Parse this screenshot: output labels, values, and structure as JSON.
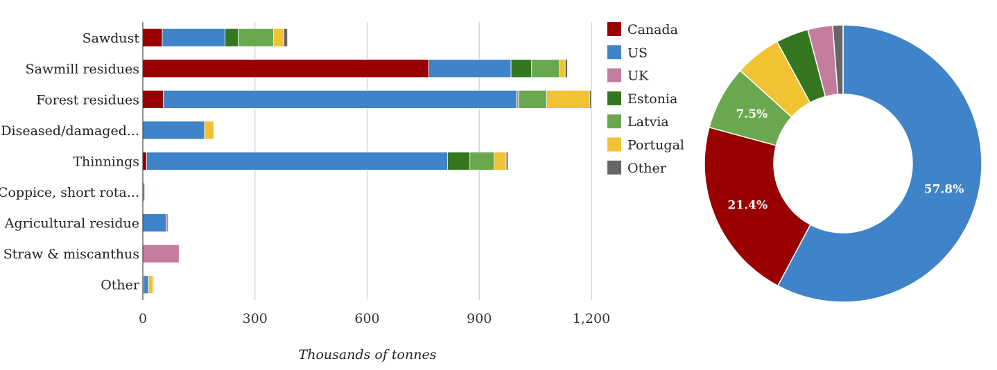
{
  "chart_data": [
    {
      "type": "bar",
      "orientation": "horizontal",
      "stacked": true,
      "xlabel": "Thousands of tonnes",
      "xlim": [
        0,
        1200
      ],
      "xticks": [
        0,
        300,
        600,
        900,
        1200
      ],
      "xtick_labels": [
        "0",
        "300",
        "600",
        "900",
        "1,200"
      ],
      "grid": true,
      "categories": [
        "Sawdust",
        "Sawmill residues",
        "Forest residues",
        "Diseased/damaged...",
        "Thinnings",
        "Coppice, short rota...",
        "Agricultural residue",
        "Straw & miscanthus",
        "Other"
      ],
      "series": [
        {
          "name": "Canada",
          "values": [
            52,
            765,
            55,
            0,
            10,
            0,
            0,
            0,
            3
          ]
        },
        {
          "name": "US",
          "values": [
            168,
            220,
            945,
            165,
            805,
            0,
            63,
            0,
            12
          ]
        },
        {
          "name": "UK",
          "values": [
            0,
            0,
            5,
            0,
            0,
            5,
            5,
            97,
            0
          ]
        },
        {
          "name": "Estonia",
          "values": [
            35,
            55,
            0,
            0,
            60,
            0,
            0,
            0,
            0
          ]
        },
        {
          "name": "Latvia",
          "values": [
            95,
            75,
            75,
            0,
            65,
            0,
            0,
            0,
            0
          ]
        },
        {
          "name": "Portugal",
          "values": [
            27,
            15,
            115,
            25,
            32,
            0,
            0,
            0,
            12
          ]
        },
        {
          "name": "Other",
          "values": [
            10,
            6,
            5,
            0,
            5,
            0,
            0,
            0,
            2
          ]
        }
      ]
    },
    {
      "type": "pie",
      "donut": true,
      "legend_position": "left",
      "slices": [
        {
          "name": "US",
          "value": 57.8,
          "label": "57.8%"
        },
        {
          "name": "Canada",
          "value": 21.4,
          "label": "21.4%"
        },
        {
          "name": "Latvia",
          "value": 7.5,
          "label": "7.5%"
        },
        {
          "name": "Portugal",
          "value": 5.4,
          "label": ""
        },
        {
          "name": "Estonia",
          "value": 3.8,
          "label": ""
        },
        {
          "name": "UK",
          "value": 2.9,
          "label": ""
        },
        {
          "name": "Other",
          "value": 1.2,
          "label": ""
        }
      ]
    }
  ],
  "legend": {
    "items": [
      {
        "name": "Canada",
        "color": "#990000"
      },
      {
        "name": "US",
        "color": "#3f83c8"
      },
      {
        "name": "UK",
        "color": "#c37c9e"
      },
      {
        "name": "Estonia",
        "color": "#347720"
      },
      {
        "name": "Latvia",
        "color": "#6aa84f"
      },
      {
        "name": "Portugal",
        "color": "#f1c232"
      },
      {
        "name": "Other",
        "color": "#666666"
      }
    ]
  }
}
